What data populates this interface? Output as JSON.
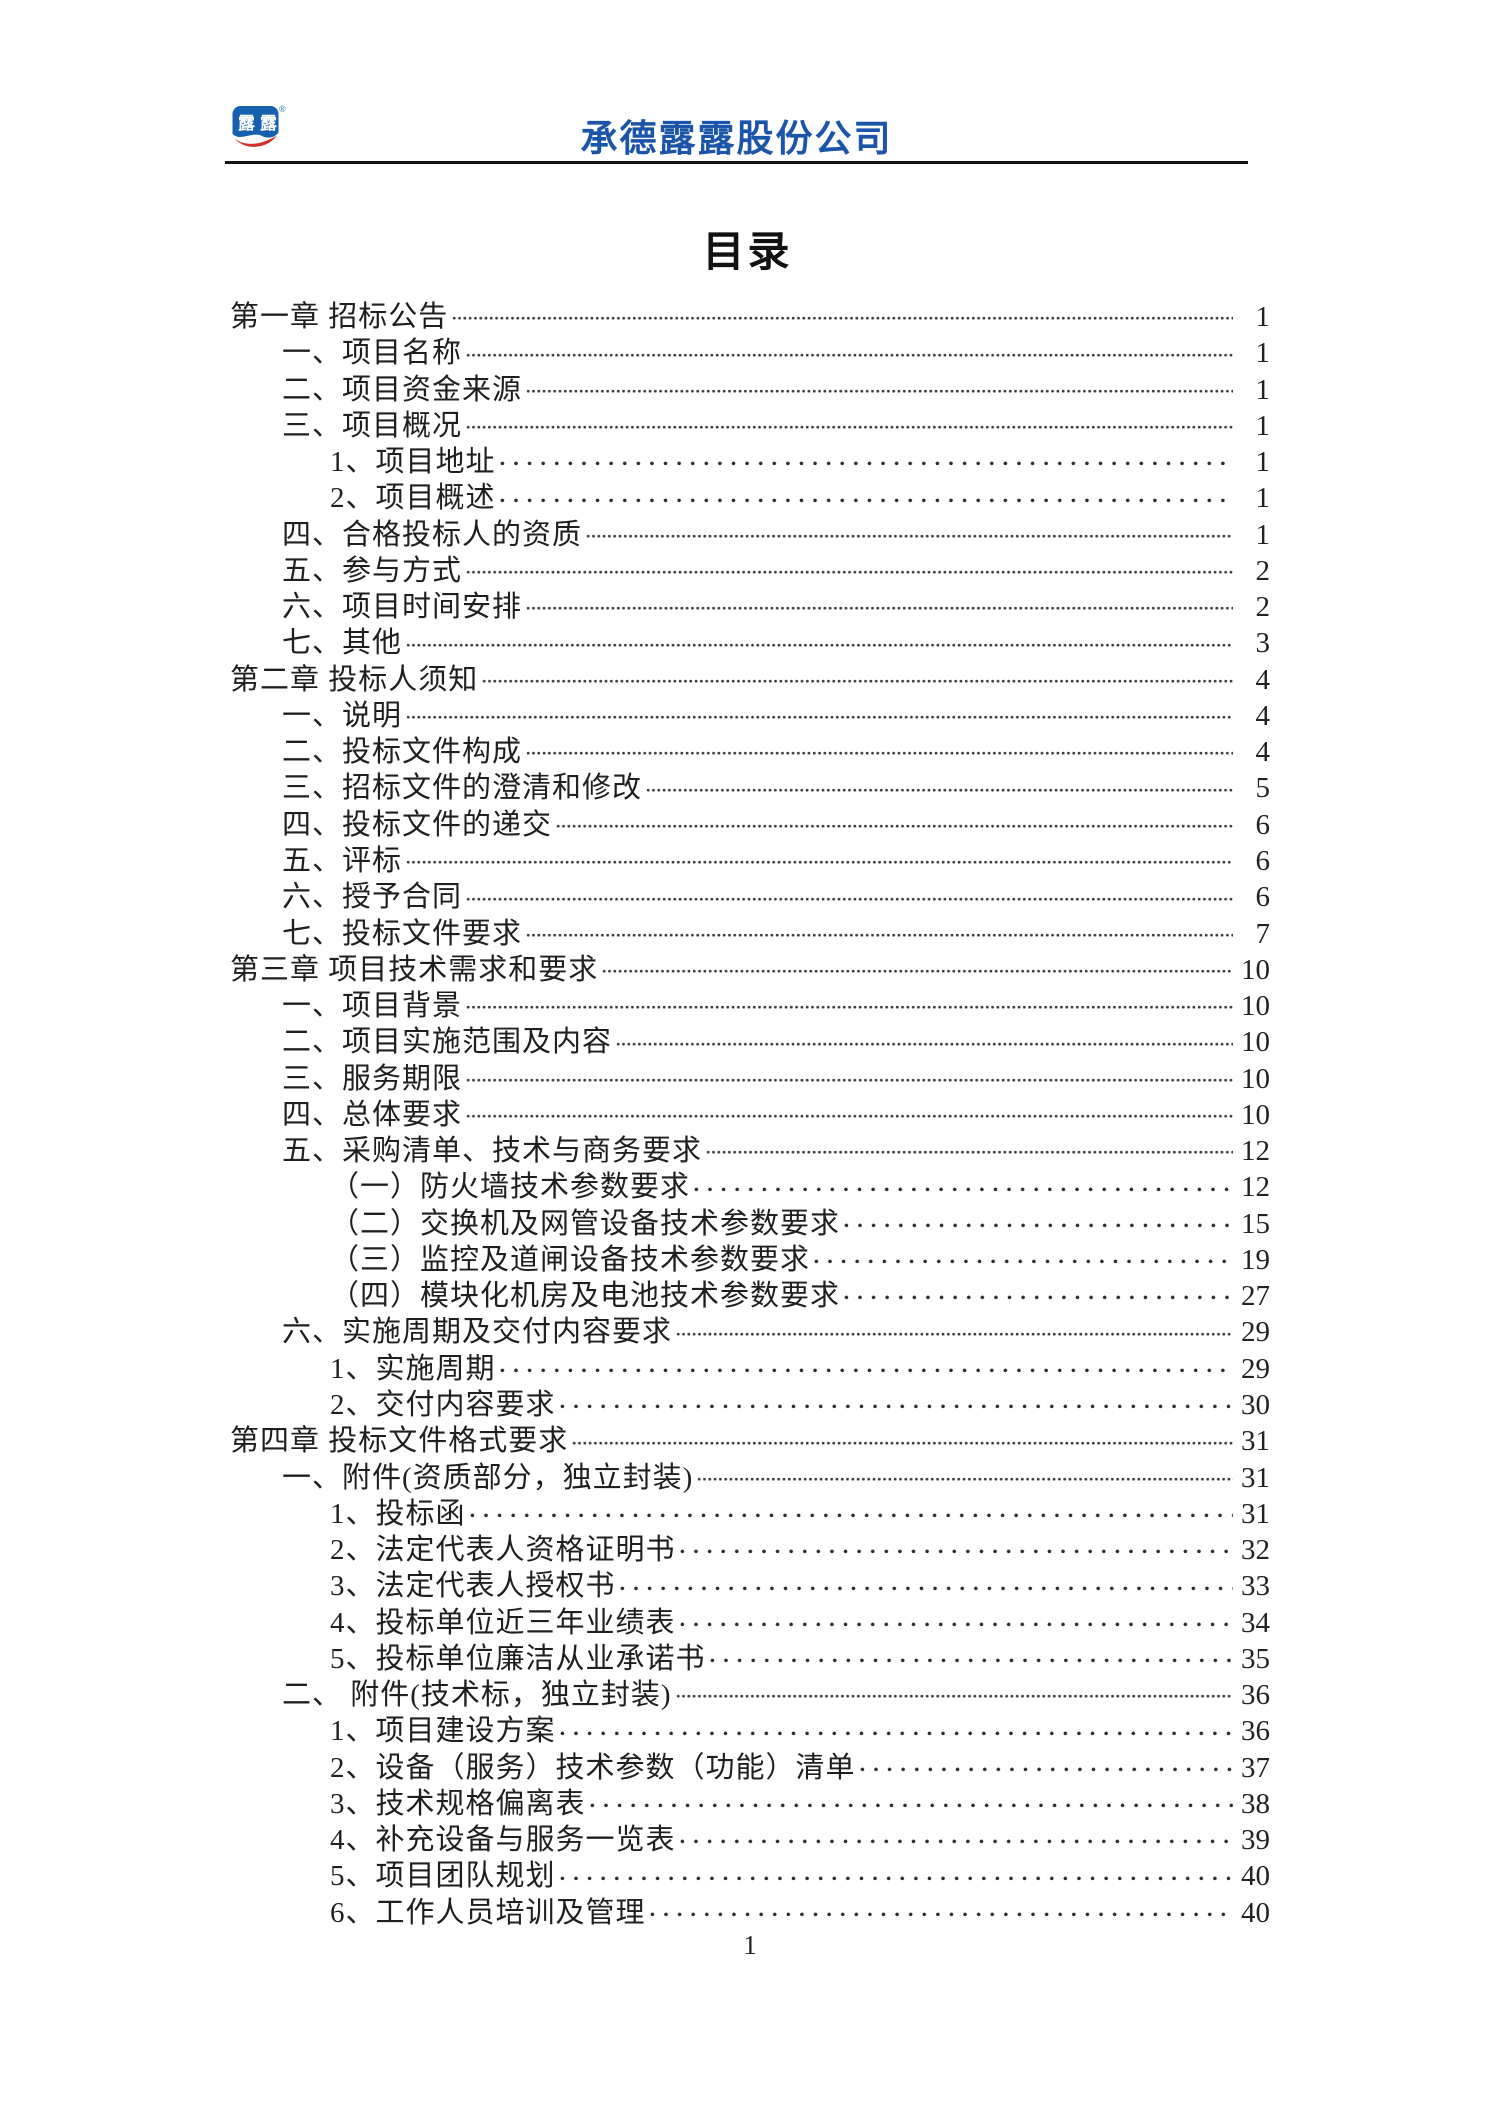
{
  "header": {
    "company_name": "承德露露股份公司",
    "logo": {
      "text": "露露",
      "registered_mark": "®"
    }
  },
  "toc_title": "目录",
  "footer": {
    "page_number": "1"
  },
  "colors": {
    "company_title_blue": "#1B55A9",
    "logo_blue": "#1660AF",
    "logo_red": "#CE3128",
    "text": "#1F1F1F",
    "leader_dots": "#3D3D3D"
  },
  "toc": [
    {
      "level": 1,
      "leader": "dense",
      "label": "第一章 招标公告",
      "page": "1"
    },
    {
      "level": 2,
      "leader": "dense",
      "label": "一、项目名称",
      "page": "1"
    },
    {
      "level": 2,
      "leader": "dense",
      "label": "二、项目资金来源",
      "page": "1"
    },
    {
      "level": 2,
      "leader": "dense",
      "label": "三、项目概况",
      "page": "1"
    },
    {
      "level": 3,
      "leader": "sparse",
      "label": "1、项目地址",
      "page": "1"
    },
    {
      "level": 3,
      "leader": "sparse",
      "label": "2、项目概述",
      "page": "1"
    },
    {
      "level": 2,
      "leader": "dense",
      "label": "四、合格投标人的资质",
      "page": "1"
    },
    {
      "level": 2,
      "leader": "dense",
      "label": "五、参与方式",
      "page": "2"
    },
    {
      "level": 2,
      "leader": "dense",
      "label": "六、项目时间安排",
      "page": "2"
    },
    {
      "level": 2,
      "leader": "dense",
      "label": "七、其他",
      "page": "3"
    },
    {
      "level": 1,
      "leader": "dense",
      "label": "第二章 投标人须知",
      "page": "4"
    },
    {
      "level": 2,
      "leader": "dense",
      "label": "一、说明",
      "page": "4"
    },
    {
      "level": 2,
      "leader": "dense",
      "label": "二、投标文件构成",
      "page": "4"
    },
    {
      "level": 2,
      "leader": "dense",
      "label": "三、招标文件的澄清和修改",
      "page": "5"
    },
    {
      "level": 2,
      "leader": "dense",
      "label": "四、投标文件的递交",
      "page": "6"
    },
    {
      "level": 2,
      "leader": "dense",
      "label": "五、评标",
      "page": "6"
    },
    {
      "level": 2,
      "leader": "dense",
      "label": "六、授予合同",
      "page": "6"
    },
    {
      "level": 2,
      "leader": "dense",
      "label": "七、投标文件要求",
      "page": "7"
    },
    {
      "level": 1,
      "leader": "dense",
      "label": "第三章 项目技术需求和要求",
      "page": "10"
    },
    {
      "level": 2,
      "leader": "dense",
      "label": "一、项目背景",
      "page": "10"
    },
    {
      "level": 2,
      "leader": "dense",
      "label": "二、项目实施范围及内容",
      "page": "10"
    },
    {
      "level": 2,
      "leader": "dense",
      "label": "三、服务期限",
      "page": "10"
    },
    {
      "level": 2,
      "leader": "dense",
      "label": "四、总体要求",
      "page": "10"
    },
    {
      "level": 2,
      "leader": "dense",
      "label": "五、采购清单、技术与商务要求",
      "page": "12"
    },
    {
      "level": 3,
      "leader": "sparse",
      "label": "（一）防火墙技术参数要求",
      "page": "12"
    },
    {
      "level": 3,
      "leader": "sparse",
      "label": "（二）交换机及网管设备技术参数要求",
      "page": "15"
    },
    {
      "level": 3,
      "leader": "sparse",
      "label": "（三）监控及道闸设备技术参数要求",
      "page": "19"
    },
    {
      "level": 3,
      "leader": "sparse",
      "label": "（四）模块化机房及电池技术参数要求",
      "page": "27"
    },
    {
      "level": 2,
      "leader": "dense",
      "label": "六、实施周期及交付内容要求",
      "page": "29"
    },
    {
      "level": 3,
      "leader": "sparse",
      "label": "1、实施周期",
      "page": "29"
    },
    {
      "level": 3,
      "leader": "sparse",
      "label": "2、交付内容要求",
      "page": "30"
    },
    {
      "level": 1,
      "leader": "dense",
      "label": "第四章 投标文件格式要求",
      "page": "31"
    },
    {
      "level": 2,
      "leader": "dense",
      "label": "一、附件(资质部分，独立封装)",
      "page": "31"
    },
    {
      "level": 3,
      "leader": "sparse",
      "label": "1、投标函",
      "page": "31"
    },
    {
      "level": 3,
      "leader": "sparse",
      "label": "2、法定代表人资格证明书",
      "page": "32"
    },
    {
      "level": 3,
      "leader": "sparse",
      "label": "3、法定代表人授权书",
      "page": "33"
    },
    {
      "level": 3,
      "leader": "sparse",
      "label": "4、投标单位近三年业绩表",
      "page": "34"
    },
    {
      "level": 3,
      "leader": "sparse",
      "label": "5、投标单位廉洁从业承诺书",
      "page": "35"
    },
    {
      "level": 2,
      "leader": "dense",
      "label": "二、 附件(技术标，独立封装)",
      "page": "36"
    },
    {
      "level": 3,
      "leader": "sparse",
      "label": "1、项目建设方案",
      "page": "36"
    },
    {
      "level": 3,
      "leader": "sparse",
      "label": "2、设备（服务）技术参数（功能）清单",
      "page": "37"
    },
    {
      "level": 3,
      "leader": "sparse",
      "label": "3、技术规格偏离表",
      "page": "38"
    },
    {
      "level": 3,
      "leader": "sparse",
      "label": "4、补充设备与服务一览表",
      "page": "39"
    },
    {
      "level": 3,
      "leader": "sparse",
      "label": "5、项目团队规划",
      "page": "40"
    },
    {
      "level": 3,
      "leader": "sparse",
      "label": "6、工作人员培训及管理",
      "page": "40"
    }
  ]
}
